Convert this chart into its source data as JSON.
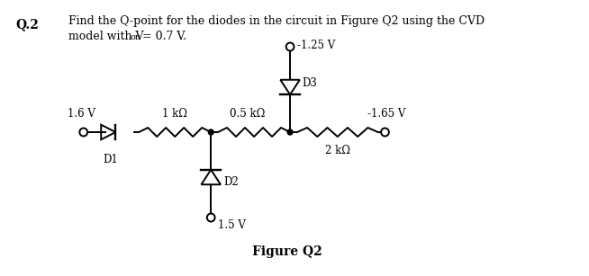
{
  "title_text": "Figure Q2",
  "question_label": "Q.2",
  "bg_color": "#ffffff",
  "text_color": "#000000",
  "circuit_color": "#000000",
  "lw": 1.4,
  "v16_label": "1.6 V",
  "v165_label": "-1.65 V",
  "v125_label": "-1.25 V",
  "v15_label": "1.5 V",
  "r1_label": "1 kΩ",
  "r05_label": "0.5 kΩ",
  "r2_label": "2 kΩ",
  "d1_label": "D1",
  "d2_label": "D2",
  "d3_label": "D3"
}
